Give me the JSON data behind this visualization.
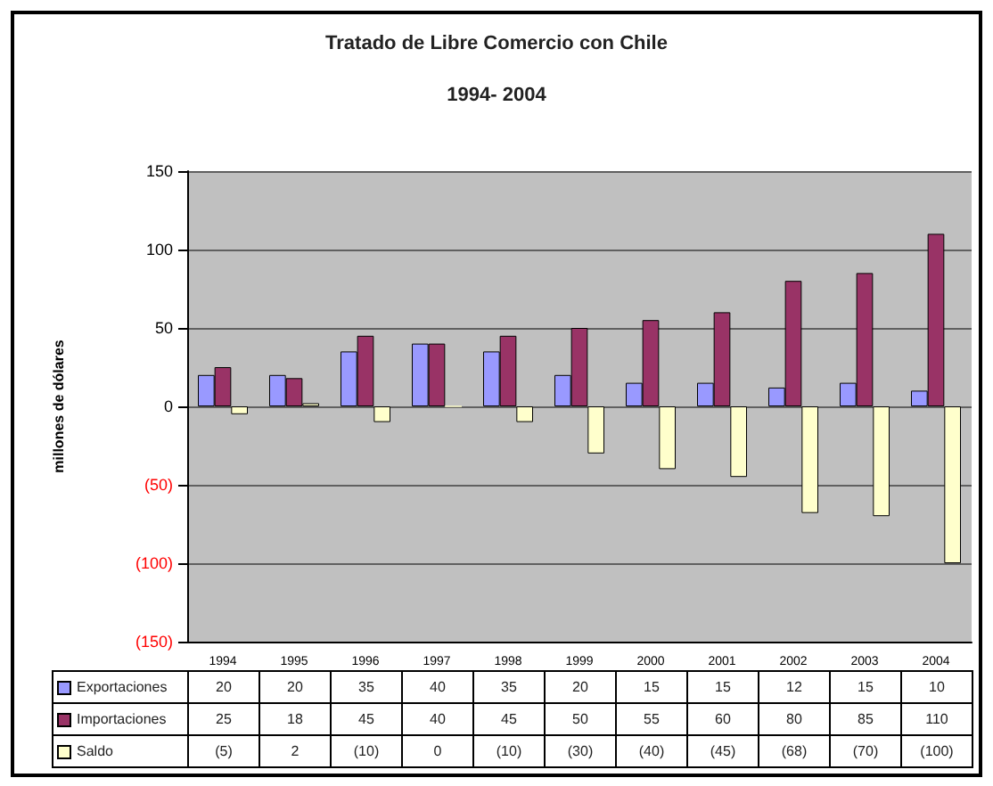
{
  "chart_data": {
    "type": "bar",
    "title": "Tratado de Libre Comercio con Chile",
    "subtitle": "1994- 2004",
    "ylabel": "millones de dólares",
    "categories": [
      "1994",
      "1995",
      "1996",
      "1997",
      "1998",
      "1999",
      "2000",
      "2001",
      "2002",
      "2003",
      "2004"
    ],
    "series": [
      {
        "name": "Exportaciones",
        "color": "#9999ff",
        "values": [
          20,
          20,
          35,
          40,
          35,
          20,
          15,
          15,
          12,
          15,
          10
        ],
        "value_labels": [
          "20",
          "20",
          "35",
          "40",
          "35",
          "20",
          "15",
          "15",
          "12",
          "15",
          "10"
        ]
      },
      {
        "name": "Importaciones",
        "color": "#993366",
        "values": [
          25,
          18,
          45,
          40,
          45,
          50,
          55,
          60,
          80,
          85,
          110
        ],
        "value_labels": [
          "25",
          "18",
          "45",
          "40",
          "45",
          "50",
          "55",
          "60",
          "80",
          "85",
          "110"
        ]
      },
      {
        "name": "Saldo",
        "color": "#ffffcc",
        "values": [
          -5,
          2,
          -10,
          0,
          -10,
          -30,
          -40,
          -45,
          -68,
          -70,
          -100
        ],
        "value_labels": [
          "(5)",
          "2",
          "(10)",
          "0",
          "(10)",
          "(30)",
          "(40)",
          "(45)",
          "(68)",
          "(70)",
          "(100)"
        ]
      }
    ],
    "ylim": [
      -150,
      150
    ],
    "yticks": [
      {
        "value": -150,
        "label": "(150)"
      },
      {
        "value": -100,
        "label": "(100)"
      },
      {
        "value": -50,
        "label": "(50)"
      },
      0,
      50,
      100,
      150
    ],
    "grid": "y",
    "legend": "bottom"
  }
}
